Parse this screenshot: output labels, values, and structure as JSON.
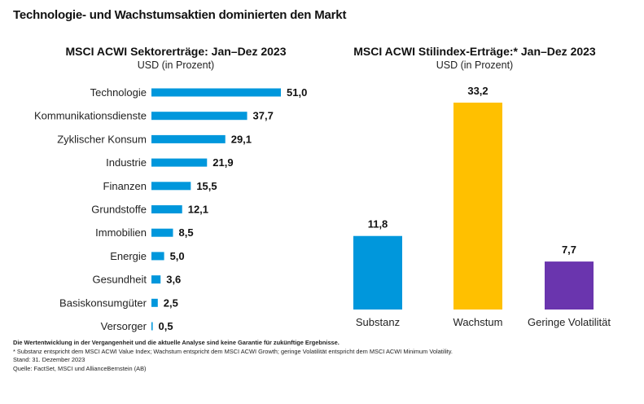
{
  "title": "Technologie- und Wachstumsaktien dominierten den Markt",
  "colors": {
    "sector_bar": "#0097DC",
    "substanz": "#0097DC",
    "wachstum": "#FFC000",
    "volatility": "#6A35AE"
  },
  "chart_data": [
    {
      "type": "bar",
      "orientation": "horizontal",
      "title": "MSCI ACWI Sektorerträge: Jan–Dez 2023",
      "subtitle": "USD (in Prozent)",
      "categories": [
        "Technologie",
        "Kommunikationsdienste",
        "Zyklischer Konsum",
        "Industrie",
        "Finanzen",
        "Grundstoffe",
        "Immobilien",
        "Energie",
        "Gesundheit",
        "Basiskonsumgüter",
        "Versorger"
      ],
      "values": [
        51.0,
        37.7,
        29.1,
        21.9,
        15.5,
        12.1,
        8.5,
        5.0,
        3.6,
        2.5,
        0.5
      ],
      "value_labels": [
        "51,0",
        "37,7",
        "29,1",
        "21,9",
        "15,5",
        "12,1",
        "8,5",
        "5,0",
        "3,6",
        "2,5",
        "0,5"
      ],
      "xlim": [
        0,
        51
      ]
    },
    {
      "type": "bar",
      "orientation": "vertical",
      "title": "MSCI ACWI Stilindex-Erträge:* Jan–Dez 2023",
      "subtitle": "USD (in Prozent)",
      "categories": [
        "Substanz",
        "Wachstum",
        "Geringe Volatilität"
      ],
      "values": [
        11.8,
        33.2,
        7.7
      ],
      "value_labels": [
        "11,8",
        "33,2",
        "7,7"
      ],
      "ylim": [
        0,
        33.2
      ]
    }
  ],
  "footer": {
    "disclaimer": "Die Wertentwicklung in der Vergangenheit und die aktuelle Analyse sind keine Garantie für zukünftige Ergebnisse.",
    "note": "* Substanz entspricht dem MSCI ACWI Value Index; Wachstum entspricht dem MSCI ACWI Growth; geringe Volatilität entspricht dem MSCI ACWI Minimum Volatility.",
    "date": "Stand: 31. Dezember 2023",
    "source": "Quelle: FactSet, MSCI und AllianceBernstein (AB)"
  }
}
